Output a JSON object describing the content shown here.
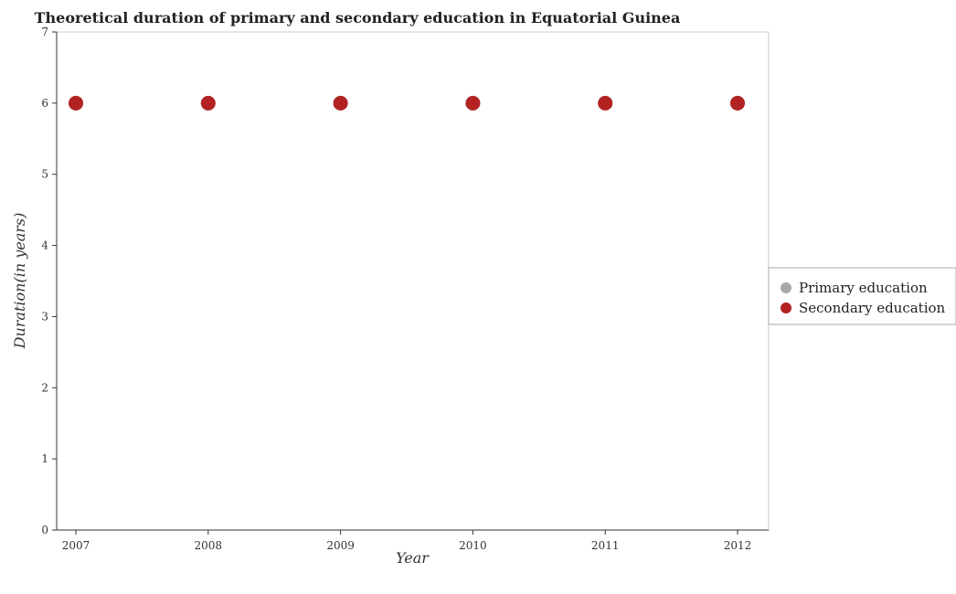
{
  "chart_data": {
    "type": "scatter",
    "title": "Theoretical duration of primary and secondary education in Equatorial Guinea",
    "xlabel": "Year",
    "ylabel": "Duration(in years)",
    "categories": [
      "2007",
      "2008",
      "2009",
      "2010",
      "2011",
      "2012"
    ],
    "ylim": [
      0,
      7
    ],
    "yticks": [
      "0",
      "1",
      "2",
      "3",
      "4",
      "5",
      "6",
      "7"
    ],
    "grid": false,
    "legend_position": "right",
    "series": [
      {
        "name": "Primary education",
        "values": [
          6,
          6,
          6,
          6,
          6,
          6
        ],
        "color": "#a9a9a9"
      },
      {
        "name": "Secondary education",
        "values": [
          6,
          6,
          6,
          6,
          6,
          6
        ],
        "color": "#b22222"
      }
    ]
  }
}
